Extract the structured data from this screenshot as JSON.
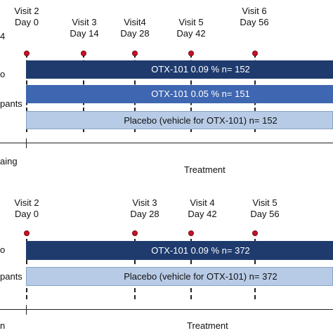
{
  "top": {
    "visits": [
      {
        "visit": "Visit 2",
        "day": "Day 0"
      },
      {
        "visit": "Visit 3",
        "day": "Day 14"
      },
      {
        "visit": "Visit4",
        "day": "Day 28"
      },
      {
        "visit": "Visit 5",
        "day": "Day 42"
      },
      {
        "visit": "Visit 6",
        "day": "Day 56"
      }
    ],
    "edge_labels": [
      "4",
      "o",
      "pants"
    ],
    "arms": [
      {
        "label": "OTX-101 0.09 % n= 152"
      },
      {
        "label": "OTX-101 0.05 % n= 151"
      },
      {
        "label": "Placebo (vehicle for OTX-101) n= 152"
      }
    ],
    "phase_left": "aing",
    "phase_right": "Treatment"
  },
  "bottom": {
    "visits": [
      {
        "visit": "Visit 2",
        "day": "Day 0"
      },
      {
        "visit": "Visit 3",
        "day": "Day 28"
      },
      {
        "visit": "Visit 4",
        "day": "Day 42"
      },
      {
        "visit": "Visit 5",
        "day": "Day 56"
      }
    ],
    "edge_labels": [
      "o",
      "pants"
    ],
    "arms": [
      {
        "label": "OTX-101 0.09 % n= 372"
      },
      {
        "label": "Placebo (vehicle for OTX-101) n= 372"
      }
    ],
    "phase_left": "n",
    "phase_right": "Treatment"
  }
}
